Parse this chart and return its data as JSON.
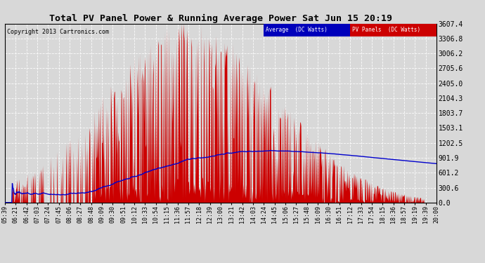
{
  "title": "Total PV Panel Power & Running Average Power Sat Jun 15 20:19",
  "copyright": "Copyright 2013 Cartronics.com",
  "background_color": "#d8d8d8",
  "plot_bg_color": "#d8d8d8",
  "y_ticks": [
    0.0,
    300.6,
    601.2,
    901.9,
    1202.5,
    1503.1,
    1803.7,
    2104.3,
    2405.0,
    2705.6,
    3006.2,
    3306.8,
    3607.4
  ],
  "y_max": 3607.4,
  "legend_avg_color": "#0000bb",
  "legend_pv_color": "#cc0000",
  "x_labels": [
    "05:39",
    "06:21",
    "06:42",
    "07:03",
    "07:24",
    "07:45",
    "08:06",
    "08:27",
    "08:48",
    "09:09",
    "09:30",
    "09:51",
    "10:12",
    "10:33",
    "10:54",
    "11:15",
    "11:36",
    "11:57",
    "12:18",
    "12:39",
    "13:00",
    "13:21",
    "13:42",
    "14:03",
    "14:24",
    "14:45",
    "15:06",
    "15:27",
    "15:48",
    "16:09",
    "16:30",
    "16:51",
    "17:12",
    "17:33",
    "17:54",
    "18:15",
    "18:36",
    "18:57",
    "19:19",
    "19:39",
    "20:00"
  ]
}
